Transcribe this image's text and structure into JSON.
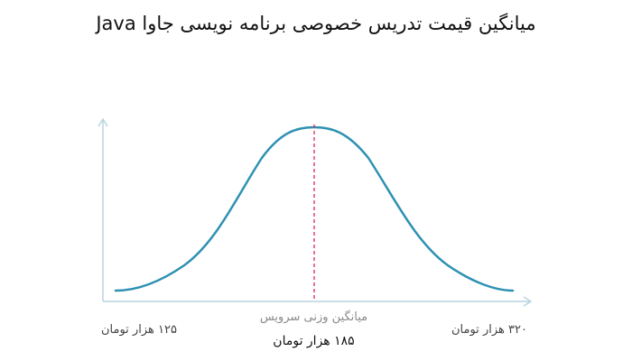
{
  "chart_data": {
    "type": "line",
    "title": "میانگین قیمت تدریس خصوصی برنامه نویسی جاوا Java",
    "xlabel": "",
    "ylabel": "",
    "x_min_label": "۱۲۵ هزار تومان",
    "x_max_label": "۳۲۰ هزار تومان",
    "mean_caption": "میانگین وزنی سرویس",
    "mean_label": "۱۸۵ هزار تومان",
    "x_min": 125,
    "x_max": 320,
    "mean": 185,
    "grid": false,
    "legend": "none",
    "series": [
      {
        "color": "#2e91b3"
      }
    ],
    "mean_line_color": "#e0245e",
    "axis_color": "#b9d3df"
  }
}
